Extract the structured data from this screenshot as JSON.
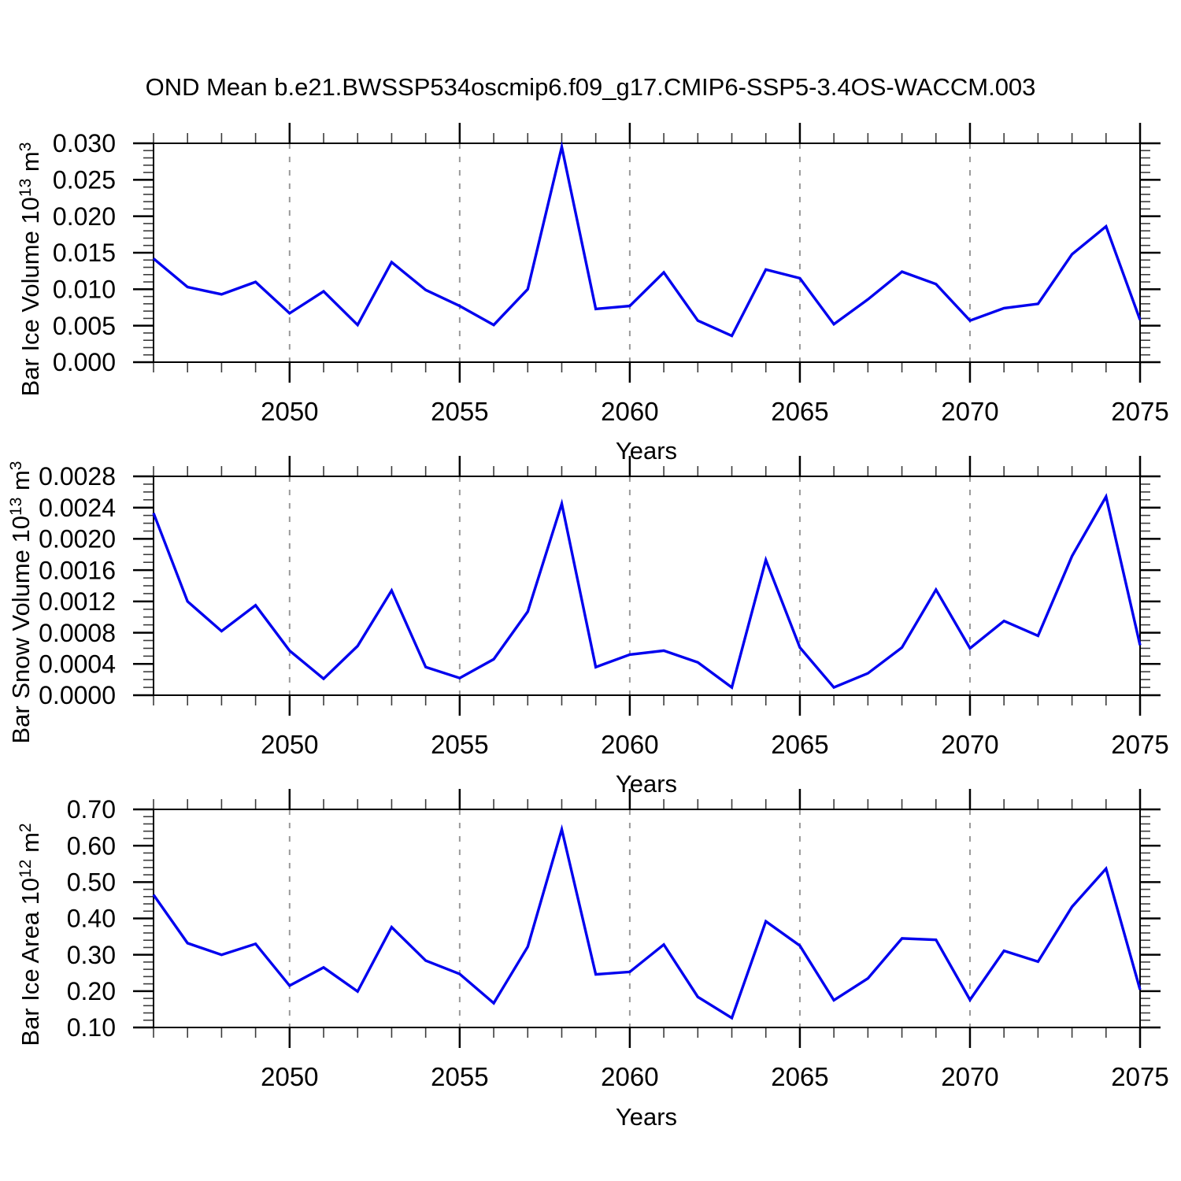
{
  "title": "OND Mean b.e21.BWSSP534oscmip6.f09_g17.CMIP6-SSP5-3.4OS-WACCM.003",
  "chart_data": [
    {
      "type": "line",
      "name": "bar-ice-volume",
      "ylabel_text": "Bar Ice Volume 10^13 m^3",
      "ylabel_parts": {
        "prefix": "Bar Ice Volume 10",
        "sup1": "13",
        "mid": " m",
        "sup2": "3"
      },
      "xlabel": "Years",
      "x": [
        2046,
        2047,
        2048,
        2049,
        2050,
        2051,
        2052,
        2053,
        2054,
        2055,
        2056,
        2057,
        2058,
        2059,
        2060,
        2061,
        2062,
        2063,
        2064,
        2065,
        2066,
        2067,
        2068,
        2069,
        2070,
        2071,
        2072,
        2073,
        2074,
        2075
      ],
      "values": [
        0.0142,
        0.0103,
        0.0093,
        0.011,
        0.0067,
        0.0097,
        0.0051,
        0.0137,
        0.0099,
        0.0077,
        0.0051,
        0.01,
        0.0295,
        0.0073,
        0.0077,
        0.0123,
        0.0057,
        0.0036,
        0.0127,
        0.0115,
        0.0052,
        0.0086,
        0.0124,
        0.0107,
        0.0057,
        0.0074,
        0.008,
        0.0148,
        0.0186,
        0.0058
      ],
      "xlim": [
        2046,
        2075
      ],
      "ylim": [
        0.0,
        0.03
      ],
      "xticks": [
        2050,
        2055,
        2060,
        2065,
        2070,
        2075
      ],
      "xtick_labels": [
        "2050",
        "2055",
        "2060",
        "2065",
        "2070",
        "2075"
      ],
      "xtick_minor_step": 1,
      "grid_x": [
        2050,
        2055,
        2060,
        2065,
        2070
      ],
      "ytick_values": [
        0.0,
        0.005,
        0.01,
        0.015,
        0.02,
        0.025,
        0.03
      ],
      "ytick_labels": [
        "0.000",
        "0.005",
        "0.010",
        "0.015",
        "0.020",
        "0.025",
        "0.030"
      ],
      "ytick_minor_step": 0.001,
      "grid_on": "x-dashed",
      "legend": "none",
      "line_color": "#0000ee"
    },
    {
      "type": "line",
      "name": "bar-snow-volume",
      "ylabel_text": "Bar Snow Volume 10^13 m^3",
      "ylabel_parts": {
        "prefix": "Bar Snow Volume 10",
        "sup1": "13",
        "mid": " m",
        "sup2": "3"
      },
      "xlabel": "Years",
      "x": [
        2046,
        2047,
        2048,
        2049,
        2050,
        2051,
        2052,
        2053,
        2054,
        2055,
        2056,
        2057,
        2058,
        2059,
        2060,
        2061,
        2062,
        2063,
        2064,
        2065,
        2066,
        2067,
        2068,
        2069,
        2070,
        2071,
        2072,
        2073,
        2074,
        2075
      ],
      "values": [
        0.00233,
        0.0012,
        0.00082,
        0.00115,
        0.00057,
        0.00021,
        0.00063,
        0.00134,
        0.00036,
        0.00022,
        0.00046,
        0.00107,
        0.00245,
        0.00036,
        0.00052,
        0.00057,
        0.00042,
        0.0001,
        0.00173,
        0.00061,
        0.0001,
        0.00028,
        0.00061,
        0.00135,
        0.0006,
        0.00095,
        0.00076,
        0.00178,
        0.00254,
        0.00064
      ],
      "xlim": [
        2046,
        2075
      ],
      "ylim": [
        0.0,
        0.0028
      ],
      "xticks": [
        2050,
        2055,
        2060,
        2065,
        2070,
        2075
      ],
      "xtick_labels": [
        "2050",
        "2055",
        "2060",
        "2065",
        "2070",
        "2075"
      ],
      "xtick_minor_step": 1,
      "grid_x": [
        2050,
        2055,
        2060,
        2065,
        2070
      ],
      "ytick_values": [
        0.0,
        0.0004,
        0.0008,
        0.0012,
        0.0016,
        0.002,
        0.0024,
        0.0028
      ],
      "ytick_labels": [
        "0.0000",
        "0.0004",
        "0.0008",
        "0.0012",
        "0.0016",
        "0.0020",
        "0.0024",
        "0.0028"
      ],
      "ytick_minor_step": 0.0001,
      "grid_on": "x-dashed",
      "legend": "none",
      "line_color": "#0000ee"
    },
    {
      "type": "line",
      "name": "bar-ice-area",
      "ylabel_text": "Bar Ice Area 10^12 m^2",
      "ylabel_parts": {
        "prefix": "Bar Ice Area 10",
        "sup1": "12",
        "mid": " m",
        "sup2": "2"
      },
      "xlabel": "Years",
      "x": [
        2046,
        2047,
        2048,
        2049,
        2050,
        2051,
        2052,
        2053,
        2054,
        2055,
        2056,
        2057,
        2058,
        2059,
        2060,
        2061,
        2062,
        2063,
        2064,
        2065,
        2066,
        2067,
        2068,
        2069,
        2070,
        2071,
        2072,
        2073,
        2074,
        2075
      ],
      "values": [
        0.465,
        0.332,
        0.3,
        0.33,
        0.215,
        0.265,
        0.199,
        0.376,
        0.284,
        0.247,
        0.167,
        0.322,
        0.645,
        0.246,
        0.253,
        0.328,
        0.184,
        0.126,
        0.392,
        0.325,
        0.175,
        0.235,
        0.345,
        0.341,
        0.176,
        0.311,
        0.281,
        0.432,
        0.537,
        0.204
      ],
      "xlim": [
        2046,
        2075
      ],
      "ylim": [
        0.1,
        0.7
      ],
      "xticks": [
        2050,
        2055,
        2060,
        2065,
        2070,
        2075
      ],
      "xtick_labels": [
        "2050",
        "2055",
        "2060",
        "2065",
        "2070",
        "2075"
      ],
      "xtick_minor_step": 1,
      "grid_x": [
        2050,
        2055,
        2060,
        2065,
        2070
      ],
      "ytick_values": [
        0.1,
        0.2,
        0.3,
        0.4,
        0.5,
        0.6,
        0.7
      ],
      "ytick_labels": [
        "0.10",
        "0.20",
        "0.30",
        "0.40",
        "0.50",
        "0.60",
        "0.70"
      ],
      "ytick_minor_step": 0.02,
      "grid_on": "x-dashed",
      "legend": "none",
      "line_color": "#0000ee"
    }
  ],
  "colors": {
    "line": "#0000ee",
    "grid": "#999999",
    "axis": "#000000",
    "background": "#ffffff"
  }
}
